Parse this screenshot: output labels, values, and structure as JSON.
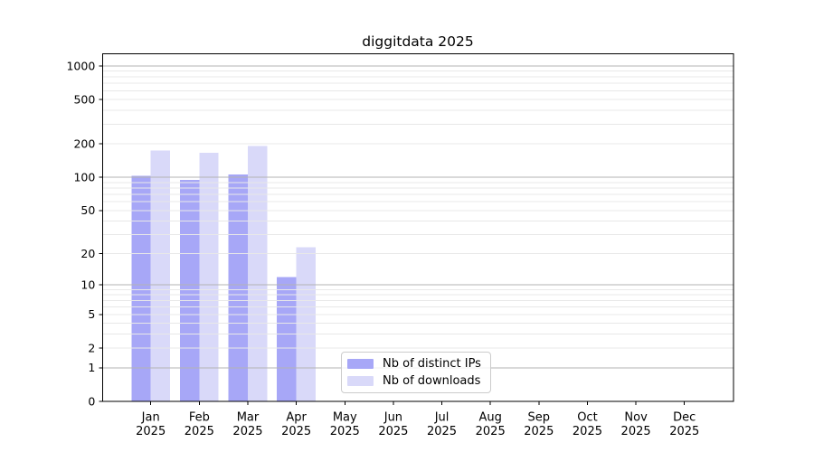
{
  "chart_data": {
    "type": "bar",
    "title": "diggitdata 2025",
    "categories": [
      "Jan 2025",
      "Feb 2025",
      "Mar 2025",
      "Apr 2025",
      "May 2025",
      "Jun 2025",
      "Jul 2025",
      "Aug 2025",
      "Sep 2025",
      "Oct 2025",
      "Nov 2025",
      "Dec 2025"
    ],
    "series": [
      {
        "name": "Nb of distinct IPs",
        "color": "#a7a7f7",
        "values": [
          103,
          95,
          106,
          12,
          0,
          0,
          0,
          0,
          0,
          0,
          0,
          0
        ]
      },
      {
        "name": "Nb of downloads",
        "color": "#d9d9f9",
        "values": [
          175,
          167,
          192,
          23,
          0,
          0,
          0,
          0,
          0,
          0,
          0,
          0
        ]
      }
    ],
    "y_axis": {
      "scale": "log1p",
      "tick_values": [
        0,
        1,
        2,
        5,
        10,
        20,
        50,
        100,
        200,
        500,
        1000
      ],
      "range": [
        0,
        1300
      ]
    },
    "grid": {
      "enabled": true,
      "major_values": [
        1,
        10,
        100,
        1000
      ],
      "major_color": "#b3b3b3",
      "minor_color": "#e8e8e8"
    },
    "legend": {
      "position": "lower-center"
    },
    "colors": {
      "spine": "#000000",
      "text": "#000000",
      "background": "#ffffff"
    }
  }
}
